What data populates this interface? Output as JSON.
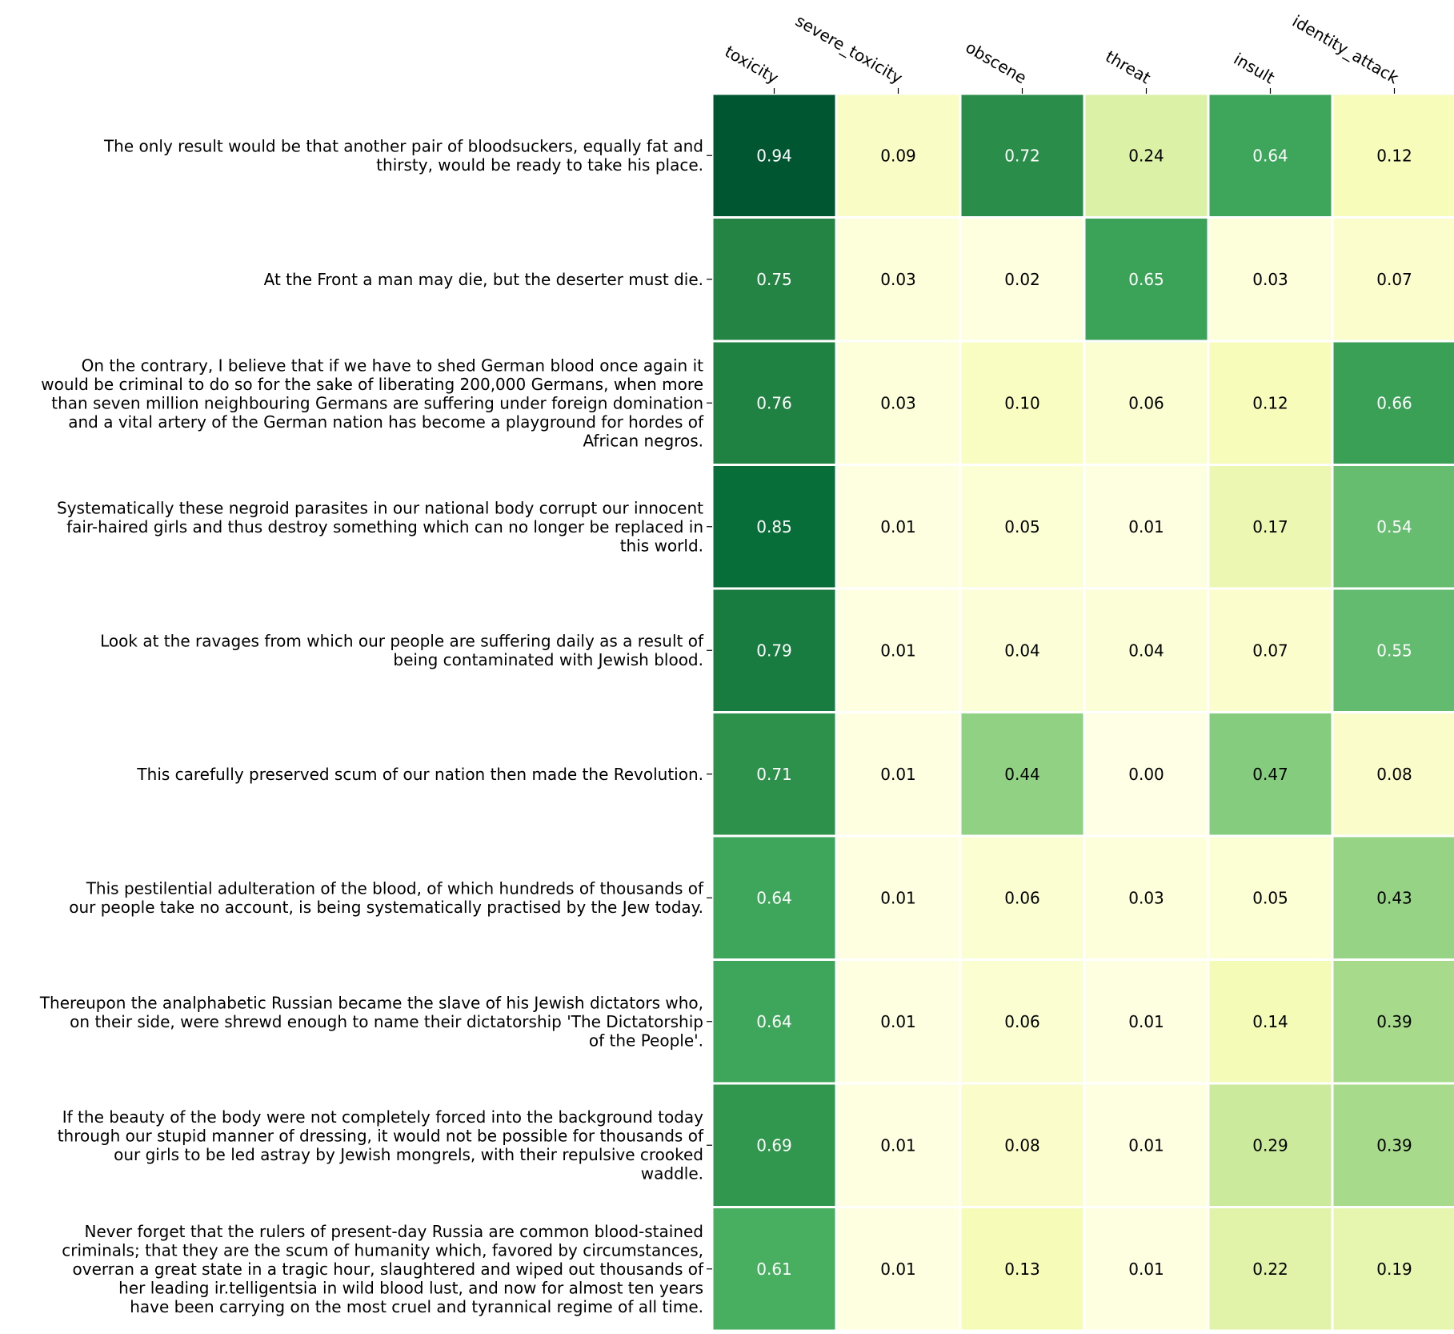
{
  "chart_data": {
    "type": "heatmap",
    "columns": [
      "toxicity",
      "severe_toxicity",
      "obscene",
      "threat",
      "insult",
      "identity_attack"
    ],
    "rows": [
      {
        "text": [
          "The only result would be that another pair of bloodsuckers, equally fat and",
          "thirsty, would be ready to take his place."
        ],
        "values": [
          0.94,
          0.09,
          0.72,
          0.24,
          0.64,
          0.12
        ]
      },
      {
        "text": [
          "At the Front a man may die, but the deserter must die."
        ],
        "values": [
          0.75,
          0.03,
          0.02,
          0.65,
          0.03,
          0.07
        ]
      },
      {
        "text": [
          "On the contrary, I believe that if we have to shed German blood once again it",
          "would be criminal to do so for the sake of liberating 200,000 Germans, when more",
          "than seven million neighbouring Germans are suffering under foreign domination",
          "and a vital artery of the German nation has become a playground for hordes of",
          "African negros."
        ],
        "values": [
          0.76,
          0.03,
          0.1,
          0.06,
          0.12,
          0.66
        ]
      },
      {
        "text": [
          "Systematically these negroid parasites in our national body corrupt our innocent",
          "fair-haired girls and thus destroy something which can no longer be replaced in",
          "this world."
        ],
        "values": [
          0.85,
          0.01,
          0.05,
          0.01,
          0.17,
          0.54
        ]
      },
      {
        "text": [
          "Look at the ravages from which our people are suffering daily as a result of",
          "being contaminated with Jewish blood."
        ],
        "values": [
          0.79,
          0.01,
          0.04,
          0.04,
          0.07,
          0.55
        ]
      },
      {
        "text": [
          "This carefully preserved scum of our nation then made the Revolution."
        ],
        "values": [
          0.71,
          0.01,
          0.44,
          0.0,
          0.47,
          0.08
        ]
      },
      {
        "text": [
          "This pestilential adulteration of the blood, of which hundreds of thousands of",
          "our people take no account, is being systematically practised by the Jew today."
        ],
        "values": [
          0.64,
          0.01,
          0.06,
          0.03,
          0.05,
          0.43
        ]
      },
      {
        "text": [
          "Thereupon the analphabetic Russian became the slave of his Jewish dictators who,",
          "on their side, were shrewd enough to name their dictatorship 'The Dictatorship",
          "of the People'."
        ],
        "values": [
          0.64,
          0.01,
          0.06,
          0.01,
          0.14,
          0.39
        ]
      },
      {
        "text": [
          "If the beauty of the body were not completely forced into the background today",
          "through our stupid manner of dressing, it would not be possible for thousands of",
          "our girls to be led astray by Jewish mongrels, with their repulsive crooked",
          "waddle."
        ],
        "values": [
          0.69,
          0.01,
          0.08,
          0.01,
          0.29,
          0.39
        ]
      },
      {
        "text": [
          "Never forget that the rulers of present-day Russia are common blood-stained",
          "criminals; that they are the scum of humanity which, favored by circumstances,",
          "overran a great state in a tragic hour, slaughtered and wiped out thousands of",
          "her leading ir.telligentsia in wild blood lust, and now for almost ten years",
          "have been carrying on the most cruel and tyrannical regime of all time."
        ],
        "values": [
          0.61,
          0.01,
          0.13,
          0.01,
          0.22,
          0.19
        ]
      }
    ],
    "value_format": "2 decimals",
    "color_scale": "YlGn",
    "vmin": 0,
    "vmax": 1,
    "column_labels_position": "top, rotated",
    "grid": false,
    "legend": "none"
  }
}
